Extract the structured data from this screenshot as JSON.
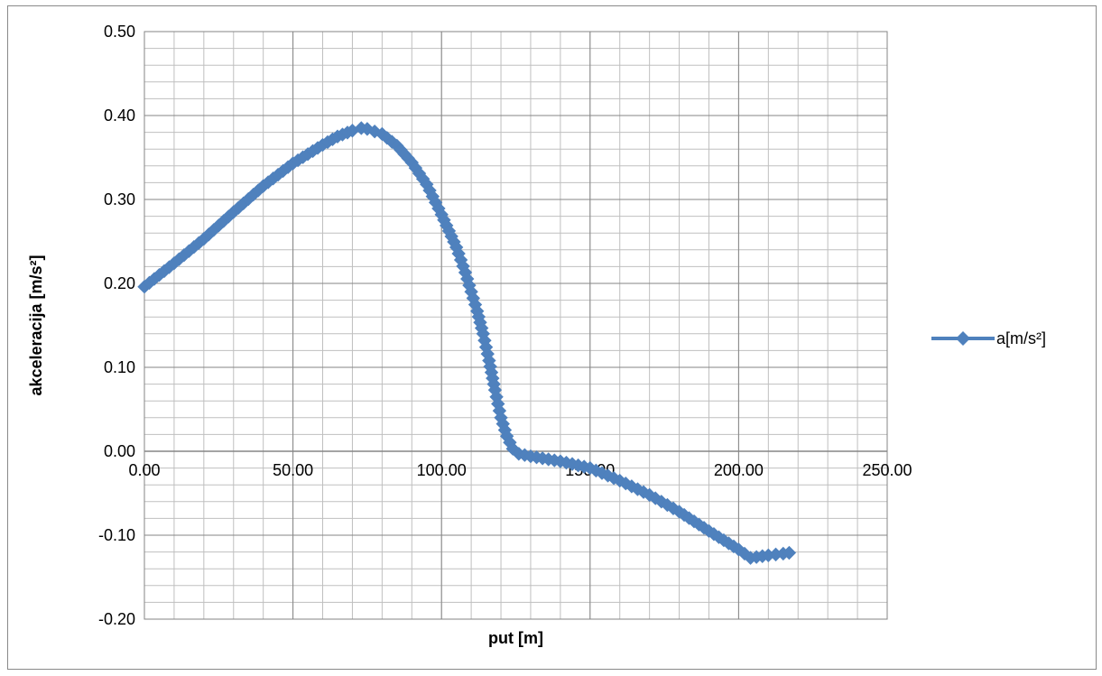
{
  "chart_data": {
    "type": "scatter",
    "xlabel": "put [m]",
    "ylabel": "akceleracija  [m/s²]",
    "xlim": [
      0,
      250
    ],
    "ylim": [
      -0.2,
      0.5
    ],
    "x_major_step": 50,
    "y_major_step": 0.1,
    "x_minor_step": 10,
    "y_minor_step": 0.02,
    "x_tick_labels": [
      "0.00",
      "50.00",
      "100.00",
      "150.00",
      "200.00",
      "250.00"
    ],
    "y_tick_labels": [
      "-0.20",
      "-0.10",
      "0.00",
      "0.10",
      "0.20",
      "0.30",
      "0.40",
      "0.50"
    ],
    "grid": true,
    "legend_position": "right",
    "series": [
      {
        "name": "a[m/s²]",
        "color": "#4f81bd",
        "marker": "diamond",
        "points": [
          [
            0,
            0.196
          ],
          [
            10,
            0.224
          ],
          [
            20,
            0.253
          ],
          [
            30,
            0.285
          ],
          [
            40,
            0.316
          ],
          [
            50,
            0.343
          ],
          [
            60,
            0.365
          ],
          [
            65,
            0.375
          ],
          [
            70,
            0.382
          ],
          [
            73,
            0.385
          ],
          [
            75,
            0.384
          ],
          [
            80,
            0.378
          ],
          [
            85,
            0.364
          ],
          [
            90,
            0.344
          ],
          [
            95,
            0.318
          ],
          [
            100,
            0.282
          ],
          [
            105,
            0.243
          ],
          [
            108,
            0.213
          ],
          [
            110,
            0.19
          ],
          [
            112,
            0.167
          ],
          [
            114,
            0.14
          ],
          [
            116,
            0.108
          ],
          [
            118,
            0.073
          ],
          [
            120,
            0.04
          ],
          [
            122,
            0.018
          ],
          [
            124,
            0.003
          ],
          [
            126,
            -0.003
          ],
          [
            130,
            -0.006
          ],
          [
            140,
            -0.012
          ],
          [
            150,
            -0.02
          ],
          [
            160,
            -0.035
          ],
          [
            170,
            -0.052
          ],
          [
            180,
            -0.072
          ],
          [
            190,
            -0.095
          ],
          [
            200,
            -0.117
          ],
          [
            204,
            -0.127
          ],
          [
            210,
            -0.124
          ],
          [
            215,
            -0.122
          ],
          [
            217,
            -0.121
          ]
        ]
      }
    ]
  }
}
